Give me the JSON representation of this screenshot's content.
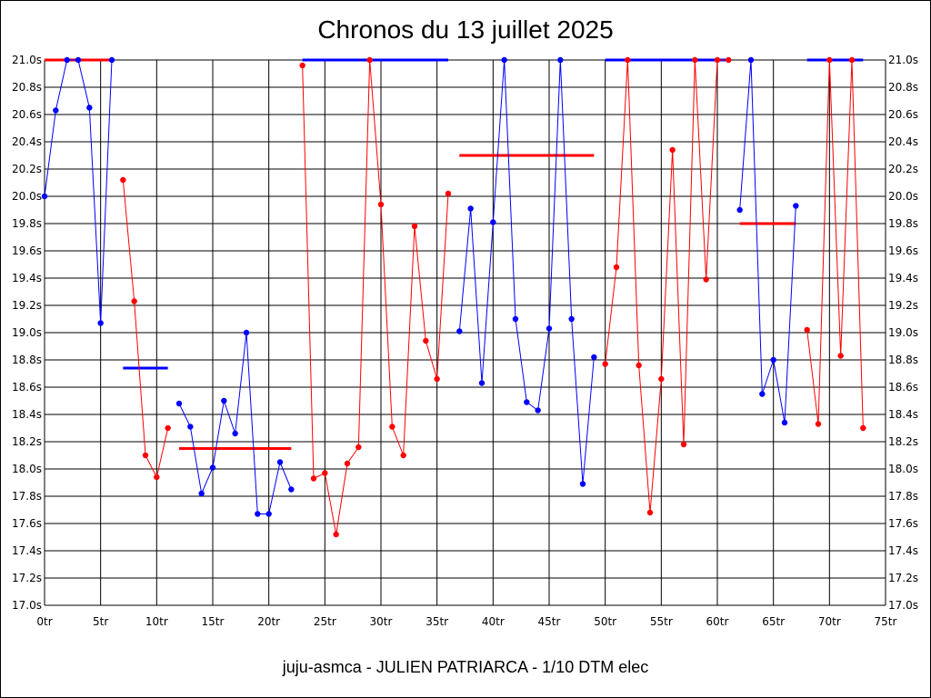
{
  "chart_data": {
    "type": "line",
    "title": "Chronos du 13 juillet 2025",
    "subtitle": "juju-asmca - JULIEN PATRIARCA - 1/10 DTM elec",
    "xlabel": "",
    "ylabel": "",
    "xlim": [
      0,
      75
    ],
    "ylim": [
      17.0,
      21.0
    ],
    "grid": true,
    "x_ticks": [
      0,
      5,
      10,
      15,
      20,
      25,
      30,
      35,
      40,
      45,
      50,
      55,
      60,
      65,
      70,
      75
    ],
    "x_tick_labels": [
      "0tr",
      "5tr",
      "10tr",
      "15tr",
      "20tr",
      "25tr",
      "30tr",
      "35tr",
      "40tr",
      "45tr",
      "50tr",
      "55tr",
      "60tr",
      "65tr",
      "70tr",
      "75tr"
    ],
    "y_ticks": [
      17.0,
      17.2,
      17.4,
      17.6,
      17.8,
      18.0,
      18.2,
      18.4,
      18.6,
      18.8,
      19.0,
      19.2,
      19.4,
      19.6,
      19.8,
      20.0,
      20.2,
      20.4,
      20.6,
      20.8,
      21.0
    ],
    "y_tick_labels": [
      "17.0s",
      "17.2s",
      "17.4s",
      "17.6s",
      "17.8s",
      "18.0s",
      "18.2s",
      "18.4s",
      "18.6s",
      "18.8s",
      "19.0s",
      "19.2s",
      "19.4s",
      "19.6s",
      "19.8s",
      "20.0s",
      "20.2s",
      "20.4s",
      "20.6s",
      "20.8s",
      "21.0s"
    ],
    "colors": {
      "blue": "#0000ff",
      "red": "#ff0000"
    },
    "series": [
      {
        "color": "blue",
        "points": [
          [
            0,
            20.0
          ],
          [
            1,
            20.63
          ],
          [
            2,
            21.0
          ],
          [
            3,
            21.0
          ],
          [
            4,
            20.65
          ],
          [
            5,
            19.07
          ],
          [
            6,
            21.0
          ]
        ]
      },
      {
        "color": "red",
        "points": [
          [
            7,
            20.12
          ],
          [
            8,
            19.23
          ],
          [
            9,
            18.1
          ],
          [
            10,
            17.94
          ],
          [
            11,
            18.3
          ]
        ]
      },
      {
        "color": "blue",
        "points": [
          [
            12,
            18.48
          ],
          [
            13,
            18.31
          ],
          [
            14,
            17.82
          ],
          [
            15,
            18.01
          ],
          [
            16,
            18.5
          ],
          [
            17,
            18.26
          ],
          [
            18,
            19.0
          ],
          [
            19,
            17.67
          ],
          [
            20,
            17.67
          ],
          [
            21,
            18.05
          ],
          [
            22,
            17.85
          ]
        ]
      },
      {
        "color": "red",
        "points": [
          [
            23,
            20.96
          ],
          [
            24,
            17.93
          ],
          [
            25,
            17.97
          ],
          [
            26,
            17.52
          ],
          [
            27,
            18.04
          ],
          [
            28,
            18.16
          ],
          [
            29,
            21.0
          ],
          [
            30,
            19.94
          ],
          [
            31,
            18.31
          ],
          [
            32,
            18.1
          ],
          [
            33,
            19.78
          ],
          [
            34,
            18.94
          ],
          [
            35,
            18.66
          ],
          [
            36,
            20.02
          ]
        ]
      },
      {
        "color": "blue",
        "points": [
          [
            37,
            19.01
          ],
          [
            38,
            19.91
          ],
          [
            39,
            18.63
          ],
          [
            40,
            19.81
          ],
          [
            41,
            21.0
          ],
          [
            42,
            19.1
          ],
          [
            43,
            18.49
          ],
          [
            44,
            18.43
          ],
          [
            45,
            19.03
          ],
          [
            46,
            21.0
          ],
          [
            47,
            19.1
          ],
          [
            48,
            17.89
          ],
          [
            49,
            18.82
          ]
        ]
      },
      {
        "color": "red",
        "points": [
          [
            50,
            18.77
          ],
          [
            51,
            19.48
          ],
          [
            52,
            21.0
          ],
          [
            53,
            18.76
          ],
          [
            54,
            17.68
          ],
          [
            55,
            18.66
          ],
          [
            56,
            20.34
          ],
          [
            57,
            18.18
          ],
          [
            58,
            21.0
          ],
          [
            59,
            19.39
          ],
          [
            60,
            21.0
          ],
          [
            61,
            21.0
          ]
        ]
      },
      {
        "color": "blue",
        "points": [
          [
            62,
            19.9
          ],
          [
            63,
            21.0
          ],
          [
            64,
            18.55
          ],
          [
            65,
            18.8
          ],
          [
            66,
            18.34
          ],
          [
            67,
            19.93
          ]
        ]
      },
      {
        "color": "red",
        "points": [
          [
            68,
            19.02
          ],
          [
            69,
            18.33
          ],
          [
            70,
            21.0
          ],
          [
            71,
            18.83
          ],
          [
            72,
            21.0
          ],
          [
            73,
            18.3
          ]
        ]
      }
    ],
    "averages": [
      {
        "color": "red",
        "x": [
          0,
          6
        ],
        "y": 21.0
      },
      {
        "color": "blue",
        "x": [
          7,
          11
        ],
        "y": 18.74
      },
      {
        "color": "red",
        "x": [
          12,
          22
        ],
        "y": 18.15
      },
      {
        "color": "blue",
        "x": [
          23,
          36
        ],
        "y": 21.0
      },
      {
        "color": "red",
        "x": [
          37,
          49
        ],
        "y": 20.3
      },
      {
        "color": "blue",
        "x": [
          50,
          61
        ],
        "y": 21.0
      },
      {
        "color": "red",
        "x": [
          62,
          67
        ],
        "y": 19.8
      },
      {
        "color": "blue",
        "x": [
          68,
          73
        ],
        "y": 21.0
      }
    ]
  }
}
